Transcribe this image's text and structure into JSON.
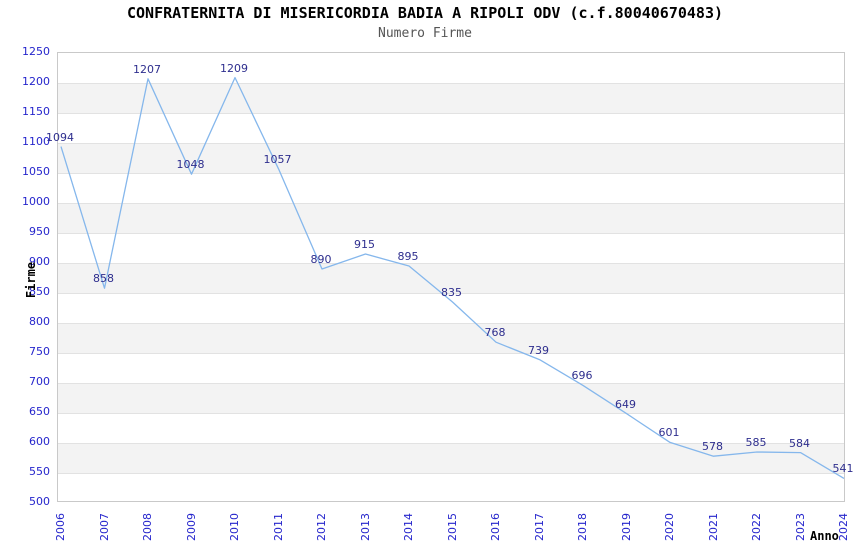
{
  "title": "CONFRATERNITA DI MISERICORDIA BADIA A RIPOLI ODV (c.f.80040670483)",
  "subtitle": "Numero Firme",
  "chart_data": {
    "type": "line",
    "title": "CONFRATERNITA DI MISERICORDIA BADIA A RIPOLI ODV (c.f.80040670483)",
    "subtitle": "Numero Firme",
    "xlabel": "Anno",
    "ylabel": "Firme",
    "categories": [
      "2006",
      "2007",
      "2008",
      "2009",
      "2010",
      "2011",
      "2012",
      "2013",
      "2014",
      "2015",
      "2016",
      "2017",
      "2018",
      "2019",
      "2020",
      "2021",
      "2022",
      "2023",
      "2024"
    ],
    "series": [
      {
        "name": "Numero Firme",
        "values": [
          1094,
          858,
          1207,
          1048,
          1209,
          1057,
          890,
          915,
          895,
          835,
          768,
          739,
          696,
          649,
          601,
          578,
          585,
          584,
          541
        ]
      }
    ],
    "ylim": [
      500,
      1250
    ],
    "ytick_step": 50,
    "yticks": [
      500,
      550,
      600,
      650,
      700,
      750,
      800,
      850,
      900,
      950,
      1000,
      1050,
      1100,
      1150,
      1200,
      1250
    ],
    "grid": "horizontal gridlines with alternating gray bands",
    "legend": "none",
    "point_labels_visible": true,
    "colors": {
      "line": "#85b7ec",
      "point_label": "#2e2e8e",
      "tick_label": "#2525cc",
      "band_fill": "#f3f3f3",
      "gridline": "#e2e2e2",
      "plot_border": "#c9c9c9",
      "title": "#000000",
      "subtitle": "#555555"
    }
  }
}
